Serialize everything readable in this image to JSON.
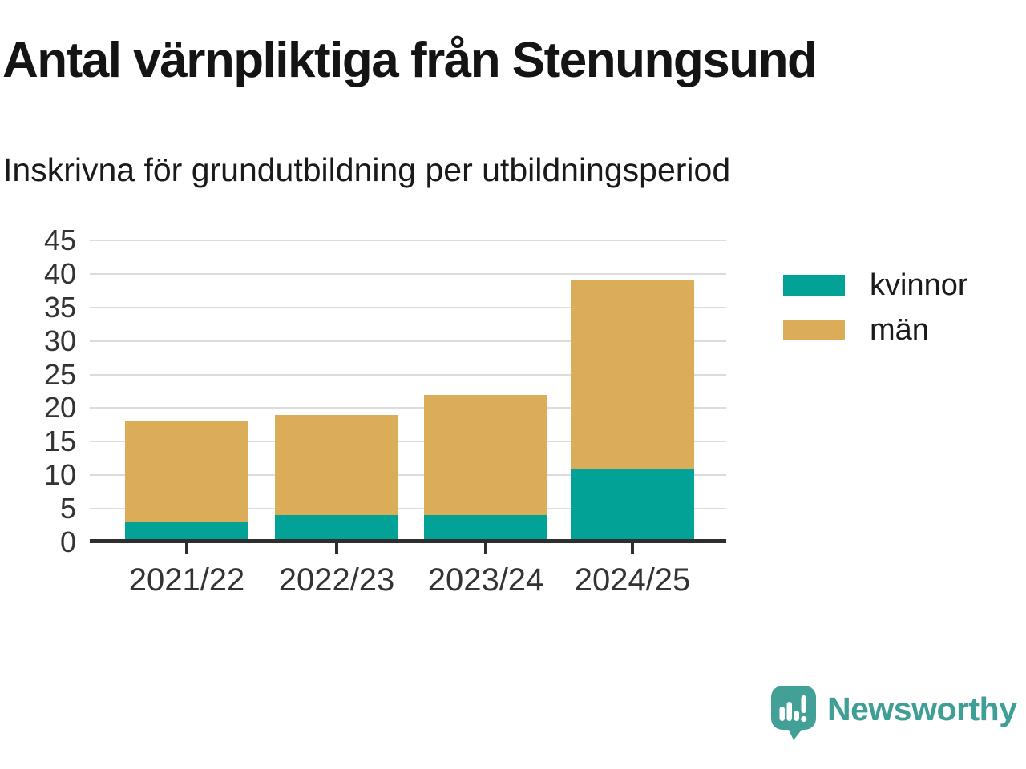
{
  "header": {
    "title": "Antal värnpliktiga från Stenungsund",
    "subtitle": "Inskrivna för grundutbildning per utbildningsperiod"
  },
  "chart_data": {
    "type": "bar",
    "stacked": true,
    "title": "Antal värnpliktiga från Stenungsund",
    "subtitle": "Inskrivna för grundutbildning per utbildningsperiod",
    "categories": [
      "2021/22",
      "2022/23",
      "2023/24",
      "2024/25"
    ],
    "series": [
      {
        "name": "kvinnor",
        "color": "#02a396",
        "values": [
          3,
          4,
          4,
          11
        ]
      },
      {
        "name": "män",
        "color": "#dbad58",
        "values": [
          15,
          15,
          18,
          28
        ]
      }
    ],
    "stacked_totals": [
      18,
      19,
      22,
      39
    ],
    "xlabel": "",
    "ylabel": "",
    "ylim": [
      0,
      45
    ],
    "yticks": [
      0,
      5,
      10,
      15,
      20,
      25,
      30,
      35,
      40,
      45
    ],
    "grid": true,
    "legend_position": "right"
  },
  "legend": {
    "items": [
      {
        "label": "kvinnor",
        "color": "#02a396"
      },
      {
        "label": "män",
        "color": "#dbad58"
      }
    ]
  },
  "branding": {
    "name": "Newsworthy",
    "logo_icon": "newsworthy-bar-chart-speech-bubble-icon",
    "logo_color": "#3f9e96"
  },
  "colors": {
    "kvinnor": "#02a396",
    "man": "#dbad58",
    "grid": "#dcdcdc",
    "axis": "#2e2e2e",
    "title_text": "#141414",
    "tick_label_text": "#333333"
  }
}
